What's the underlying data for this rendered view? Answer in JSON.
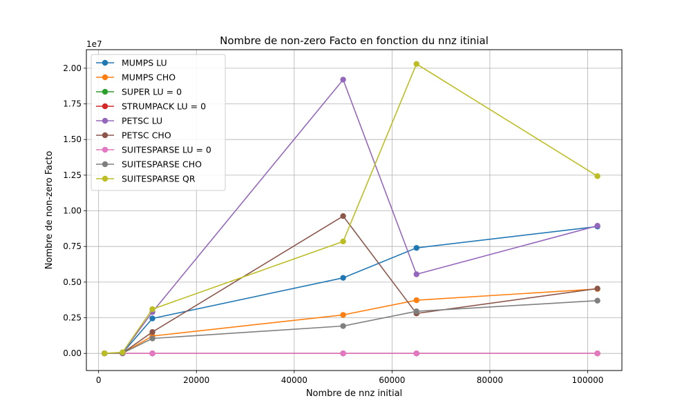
{
  "chart_data": {
    "type": "line",
    "title": "Nombre de non-zero Facto en fonction du nnz itinial",
    "xlabel": "Nombre de nnz initial",
    "ylabel": "Nombre de non-zero Facto",
    "y_offset_label": "1e7",
    "xlim": [
      -2500,
      107000
    ],
    "ylim": [
      -0.12,
      2.13
    ],
    "y_scale_factor": 10000000,
    "x_ticks": [
      0,
      20000,
      40000,
      60000,
      80000,
      100000
    ],
    "x_tick_labels": [
      "0",
      "20000",
      "40000",
      "60000",
      "80000",
      "100000"
    ],
    "y_ticks": [
      0,
      0.25,
      0.5,
      0.75,
      1.0,
      1.25,
      1.5,
      1.75,
      2.0
    ],
    "y_tick_labels": [
      "0.00",
      "0.25",
      "0.50",
      "0.75",
      "1.00",
      "1.25",
      "1.50",
      "1.75",
      "2.00"
    ],
    "grid": true,
    "legend_position": "top-left",
    "x": [
      1200,
      4900,
      11000,
      50000,
      65000,
      102000
    ],
    "series": [
      {
        "name": "MUMPS LU",
        "color": "#1f77b4",
        "values": [
          0.0005,
          0.004,
          0.245,
          0.53,
          0.74,
          0.89
        ]
      },
      {
        "name": "MUMPS CHO",
        "color": "#ff7f0e",
        "values": [
          0.0003,
          0.002,
          0.122,
          0.27,
          0.373,
          0.452
        ]
      },
      {
        "name": "SUPER LU = 0",
        "color": "#2ca02c",
        "values": [
          0,
          0,
          0,
          0,
          0,
          0
        ]
      },
      {
        "name": "STRUMPACK LU = 0",
        "color": "#d62728",
        "values": [
          0,
          0,
          0,
          0,
          0,
          0
        ]
      },
      {
        "name": "PETSC LU",
        "color": "#9467bd",
        "values": [
          0.0005,
          0.006,
          0.29,
          1.92,
          0.555,
          0.895
        ]
      },
      {
        "name": "PETSC CHO",
        "color": "#8c564b",
        "values": [
          0.0003,
          0.003,
          0.15,
          0.963,
          0.28,
          0.455
        ]
      },
      {
        "name": "SUITESPARSE LU = 0",
        "color": "#e377c2",
        "values": [
          0,
          0,
          0,
          0,
          0,
          0
        ]
      },
      {
        "name": "SUITESPARSE CHO",
        "color": "#7f7f7f",
        "values": [
          0.0002,
          0.002,
          0.105,
          0.192,
          0.295,
          0.37
        ]
      },
      {
        "name": "SUITESPARSE QR",
        "color": "#bcbd22",
        "values": [
          0.0005,
          0.008,
          0.31,
          0.785,
          2.03,
          1.243
        ]
      }
    ]
  }
}
